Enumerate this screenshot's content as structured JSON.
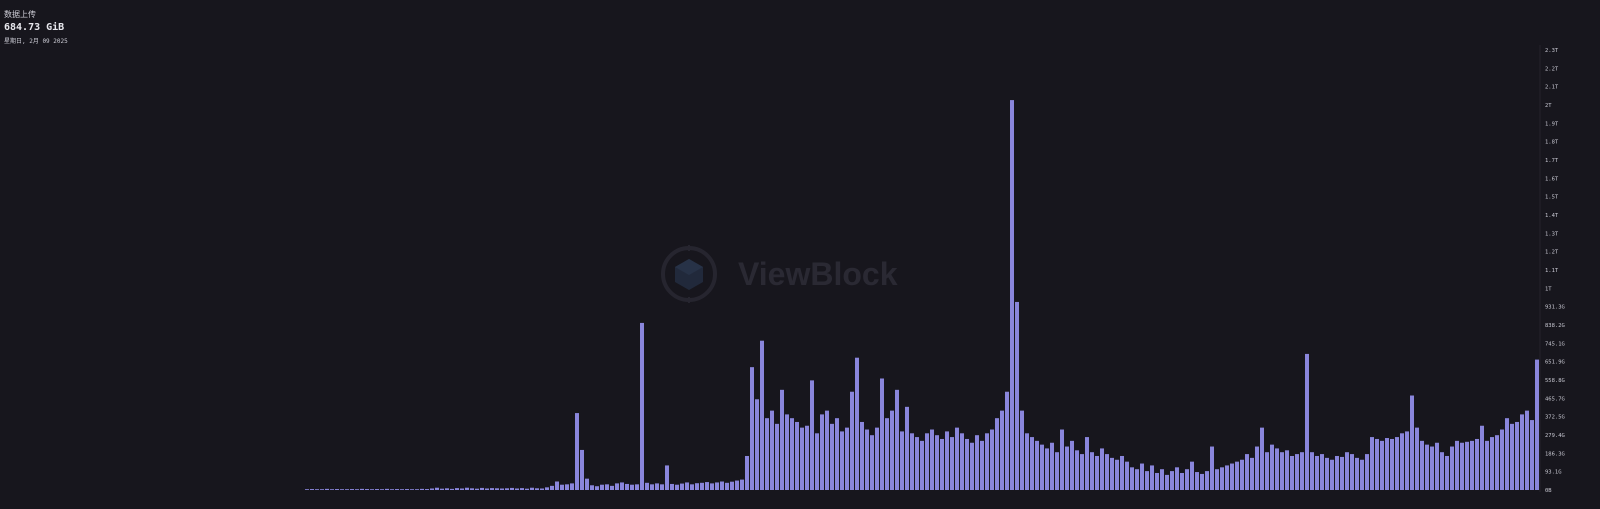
{
  "header": {
    "title": "数据上传",
    "value": "684.73 GiB",
    "date": "星期日, 2月 09 2025"
  },
  "watermark": {
    "brand": "ViewBlock"
  },
  "colors": {
    "background": "#17161d",
    "bar": "#8a86dc",
    "bar_top": "#a7a3f0"
  },
  "chart_data": {
    "type": "bar",
    "title": "",
    "xlabel": "",
    "ylabel": "",
    "unit": "GiB",
    "ylim": [
      0,
      2330
    ],
    "grid": false,
    "y_tick_labels": [
      "0B",
      "93.1G",
      "186.3G",
      "279.4G",
      "372.5G",
      "465.7G",
      "558.8G",
      "651.9G",
      "745.1G",
      "838.2G",
      "931.3G",
      "1T",
      "1.1T",
      "1.2T",
      "1.3T",
      "1.4T",
      "1.5T",
      "1.6T",
      "1.7T",
      "1.8T",
      "1.9T",
      "2T",
      "2.1T",
      "2.2T",
      "2.3T"
    ],
    "values": [
      4,
      5,
      3,
      4,
      6,
      3,
      5,
      4,
      3,
      5,
      4,
      6,
      5,
      3,
      5,
      4,
      6,
      3,
      5,
      4,
      5,
      4,
      3,
      6,
      5,
      8,
      12,
      7,
      9,
      6,
      10,
      8,
      12,
      9,
      7,
      11,
      8,
      10,
      9,
      8,
      9,
      11,
      8,
      10,
      7,
      12,
      9,
      8,
      14,
      22,
      45,
      28,
      30,
      35,
      407,
      212,
      60,
      25,
      20,
      28,
      30,
      22,
      35,
      40,
      32,
      28,
      30,
      884,
      38,
      30,
      35,
      30,
      130,
      32,
      28,
      34,
      40,
      30,
      36,
      38,
      42,
      35,
      40,
      45,
      38,
      44,
      50,
      55,
      180,
      650,
      480,
      790,
      380,
      420,
      350,
      530,
      400,
      380,
      360,
      330,
      340,
      580,
      300,
      400,
      420,
      350,
      380,
      310,
      330,
      520,
      700,
      360,
      320,
      290,
      330,
      590,
      380,
      420,
      530,
      310,
      440,
      300,
      280,
      260,
      300,
      320,
      290,
      270,
      310,
      280,
      330,
      300,
      270,
      250,
      290,
      260,
      300,
      320,
      380,
      420,
      520,
      2063,
      995,
      420,
      300,
      280,
      260,
      240,
      220,
      250,
      200,
      320,
      230,
      260,
      210,
      190,
      280,
      200,
      180,
      220,
      190,
      170,
      160,
      180,
      150,
      120,
      110,
      140,
      100,
      130,
      90,
      110,
      80,
      100,
      120,
      90,
      110,
      150,
      95,
      85,
      100,
      230,
      110,
      120,
      130,
      140,
      150,
      160,
      190,
      170,
      230,
      330,
      200,
      240,
      220,
      200,
      210,
      180,
      190,
      200,
      720,
      200,
      180,
      190,
      170,
      160,
      180,
      175,
      200,
      190,
      170,
      160,
      190,
      280,
      270,
      260,
      275,
      270,
      280,
      300,
      310,
      500,
      330,
      260,
      240,
      230,
      250,
      200,
      180,
      230,
      260,
      250,
      255,
      260,
      270,
      340,
      260,
      280,
      290,
      320,
      380,
      350,
      360,
      400,
      420,
      370,
      690
    ]
  }
}
